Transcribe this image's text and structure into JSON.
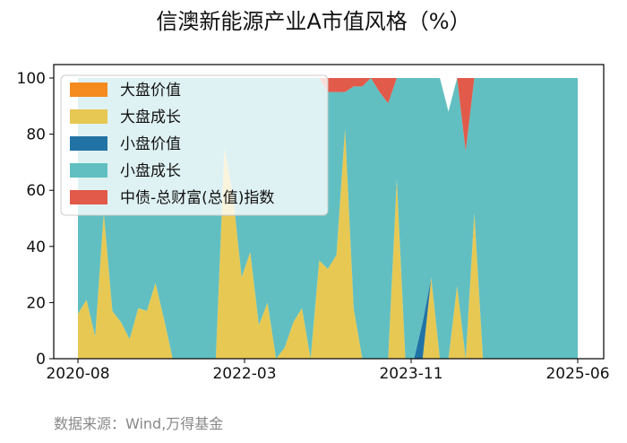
{
  "chart_data": {
    "type": "area",
    "title": "信澳新能源产业A市值风格（%）",
    "source": "数据来源：Wind,万得基金",
    "watermark": "wind",
    "xlabel": "",
    "ylabel": "",
    "x_range": [
      "2020-08",
      "2025-06"
    ],
    "x_tick_labels": [
      "2020-08",
      "2022-03",
      "2023-11",
      "2025-06"
    ],
    "ylim": [
      0,
      100
    ],
    "y_ticks": [
      0,
      20,
      40,
      60,
      80,
      100
    ],
    "grid": false,
    "legend_position": "top-left",
    "x": [
      "2020-08",
      "2020-09",
      "2020-10",
      "2020-11",
      "2020-12",
      "2021-01",
      "2021-02",
      "2021-03",
      "2021-04",
      "2021-05",
      "2021-06",
      "2021-07",
      "2021-08",
      "2021-09",
      "2021-10",
      "2021-11",
      "2021-12",
      "2022-01",
      "2022-02",
      "2022-03",
      "2022-04",
      "2022-05",
      "2022-06",
      "2022-07",
      "2022-08",
      "2022-09",
      "2022-10",
      "2022-11",
      "2022-12",
      "2023-01",
      "2023-02",
      "2023-03",
      "2023-04",
      "2023-05",
      "2023-06",
      "2023-07",
      "2023-08",
      "2023-09",
      "2023-10",
      "2023-11",
      "2023-12",
      "2024-01",
      "2024-02",
      "2024-03",
      "2024-04",
      "2024-05",
      "2024-06",
      "2024-07",
      "2024-08",
      "2024-09",
      "2024-10",
      "2024-11",
      "2024-12",
      "2025-01",
      "2025-02",
      "2025-03",
      "2025-04",
      "2025-05",
      "2025-06"
    ],
    "series": [
      {
        "name": "大盘价值",
        "color": "#F58A1F",
        "values": [
          0,
          0,
          0,
          0,
          0,
          0,
          0,
          0,
          0,
          0,
          0,
          0,
          0,
          0,
          0,
          0,
          0,
          0,
          0,
          0,
          0,
          0,
          0,
          0,
          0,
          0,
          0,
          0,
          0,
          0,
          0,
          0,
          0,
          0,
          0,
          0,
          0,
          0,
          0,
          0,
          0,
          0,
          0,
          0,
          0,
          0,
          0,
          0,
          0,
          0,
          0,
          0,
          0,
          0,
          0,
          0,
          0,
          0,
          0
        ]
      },
      {
        "name": "大盘成长",
        "color": "#E7C853",
        "values": [
          16,
          21,
          8,
          52,
          17,
          13,
          7,
          18,
          17,
          27,
          14,
          0,
          0,
          0,
          0,
          0,
          0,
          75,
          58,
          29,
          38,
          12,
          20,
          0,
          4,
          13,
          18,
          0,
          35,
          32,
          37,
          82,
          18,
          0,
          0,
          0,
          0,
          64,
          0,
          0,
          0,
          29,
          0,
          0,
          26,
          0,
          52,
          0,
          0,
          0,
          0,
          0,
          0,
          0,
          0,
          0,
          0,
          0,
          0
        ]
      },
      {
        "name": "小盘价值",
        "color": "#2273A5",
        "values": [
          0,
          0,
          0,
          0,
          0,
          0,
          0,
          0,
          0,
          0,
          0,
          0,
          0,
          0,
          0,
          0,
          0,
          0,
          0,
          0,
          0,
          0,
          0,
          0,
          0,
          0,
          0,
          0,
          0,
          0,
          0,
          0,
          0,
          0,
          0,
          0,
          0,
          0,
          0,
          0,
          13,
          0,
          0,
          0,
          0,
          0,
          0,
          0,
          0,
          0,
          0,
          0,
          0,
          0,
          0,
          0,
          0,
          0,
          0
        ]
      },
      {
        "name": "小盘成长",
        "color": "#61BFC1",
        "values": [
          84,
          79,
          92,
          48,
          83,
          87,
          93,
          82,
          83,
          73,
          86,
          100,
          100,
          100,
          100,
          100,
          100,
          25,
          42,
          71,
          62,
          88,
          80,
          100,
          96,
          87,
          82,
          100,
          65,
          63,
          58,
          13,
          79,
          97,
          100,
          95,
          91,
          36,
          100,
          100,
          87,
          71,
          100,
          88,
          74,
          74,
          48,
          100,
          100,
          100,
          100,
          100,
          100,
          100,
          100,
          100,
          100,
          100,
          100
        ]
      },
      {
        "name": "中债-总财富(总值)指数",
        "color": "#E15A4A",
        "values": [
          0,
          0,
          0,
          0,
          0,
          0,
          0,
          0,
          0,
          0,
          0,
          0,
          0,
          0,
          0,
          0,
          0,
          0,
          0,
          0,
          0,
          0,
          0,
          0,
          0,
          0,
          0,
          0,
          0,
          5,
          5,
          5,
          3,
          3,
          0,
          5,
          9,
          0,
          0,
          0,
          0,
          0,
          0,
          0,
          0,
          26,
          0,
          0,
          0,
          0,
          0,
          0,
          0,
          0,
          0,
          0,
          0,
          0,
          0
        ]
      }
    ]
  }
}
